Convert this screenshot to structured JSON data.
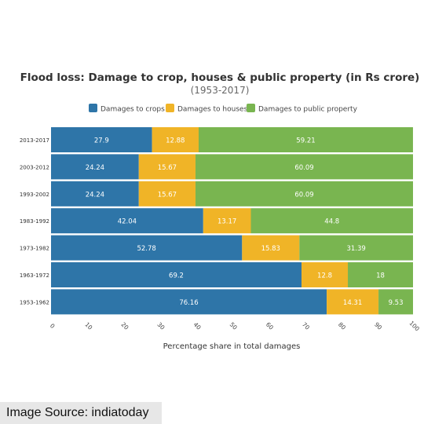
{
  "chart_data": {
    "type": "bar",
    "orientation": "horizontal",
    "stacked": true,
    "title": "Flood loss: Damage to crop, houses & public property (in Rs crore)",
    "subtitle": "(1953-2017)",
    "xlabel": "Percentage share in total damages",
    "ylabel": "",
    "xlim": [
      0,
      100
    ],
    "xticks": [
      "0",
      "10",
      "20",
      "30",
      "40",
      "50",
      "60",
      "70",
      "80",
      "90",
      "100"
    ],
    "grid": false,
    "legend_position": "top",
    "categories": [
      "2013-2017",
      "2003-2012",
      "1993-2002",
      "1983-1992",
      "1973-1982",
      "1963-1972",
      "1953-1962"
    ],
    "series": [
      {
        "name": "Damages to crops",
        "color": "#2e75a8",
        "values": [
          27.9,
          24.24,
          24.24,
          42.04,
          52.78,
          69.2,
          76.16
        ]
      },
      {
        "name": "Damages to houses",
        "color": "#f0b427",
        "values": [
          12.88,
          15.67,
          15.67,
          13.17,
          15.83,
          12.8,
          14.31
        ]
      },
      {
        "name": "Damages to public property",
        "color": "#79b550",
        "values": [
          59.21,
          60.09,
          60.09,
          44.8,
          31.39,
          18,
          9.53
        ]
      }
    ]
  },
  "source_caption": "Image Source: indiatoday"
}
